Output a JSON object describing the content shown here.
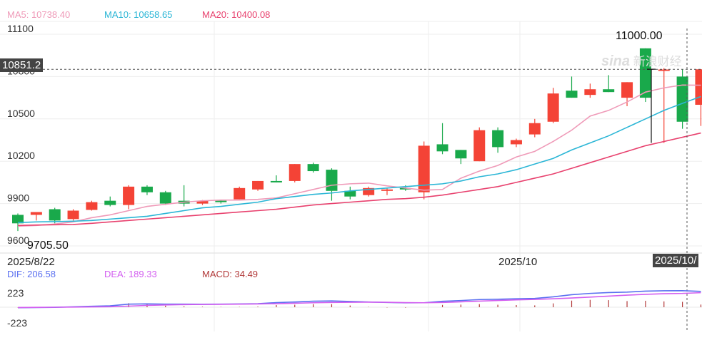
{
  "legend_top": {
    "ma5": {
      "label": "MA5: 10738.40",
      "color": "#ef9ab8"
    },
    "ma10": {
      "label": "MA10: 10658.65",
      "color": "#2bb6d6"
    },
    "ma20": {
      "label": "MA20: 10400.08",
      "color": "#e8416e"
    }
  },
  "legend_bottom": {
    "dif": {
      "label": "DIF: 206.58",
      "color": "#5a6ff0"
    },
    "dea": {
      "label": "DEA: 189.33",
      "color": "#d35ef0"
    },
    "macd": {
      "label": "MACD: 34.49",
      "color": "#b23a3a"
    }
  },
  "cursor": {
    "price_label": "10851.2",
    "date_label": "2025/10/"
  },
  "annotations": {
    "high": "11000.00",
    "low": "9705.50"
  },
  "watermark": {
    "brand": "sina",
    "text": "新浪财经"
  },
  "colors": {
    "up": "#f44336",
    "down": "#19a94b",
    "grid": "#eeeeee"
  },
  "chart_data": [
    {
      "type": "candlestick",
      "title": "",
      "y_ticks": [
        "11100",
        "10800",
        "10500",
        "10200",
        "9900",
        "9600"
      ],
      "ylim": [
        9600,
        11100
      ],
      "x_tick_labels": [
        "2025/8/22",
        "2025/10"
      ],
      "candles": [
        {
          "o": 9820,
          "h": 9830,
          "l": 9705.5,
          "c": 9760
        },
        {
          "o": 9820,
          "h": 9840,
          "l": 9780,
          "c": 9840
        },
        {
          "o": 9860,
          "h": 9870,
          "l": 9760,
          "c": 9780
        },
        {
          "o": 9790,
          "h": 9860,
          "l": 9780,
          "c": 9850
        },
        {
          "o": 9855,
          "h": 9920,
          "l": 9850,
          "c": 9910
        },
        {
          "o": 9920,
          "h": 9950,
          "l": 9880,
          "c": 9890
        },
        {
          "o": 9890,
          "h": 10030,
          "l": 9860,
          "c": 10020
        },
        {
          "o": 10020,
          "h": 10030,
          "l": 9960,
          "c": 9980
        },
        {
          "o": 9980,
          "h": 9990,
          "l": 9890,
          "c": 9900
        },
        {
          "o": 9920,
          "h": 10030,
          "l": 9880,
          "c": 9900
        },
        {
          "o": 9900,
          "h": 9925,
          "l": 9890,
          "c": 9920
        },
        {
          "o": 9920,
          "h": 9925,
          "l": 9900,
          "c": 9915
        },
        {
          "o": 9930,
          "h": 10020,
          "l": 9930,
          "c": 10010
        },
        {
          "o": 10000,
          "h": 10060,
          "l": 9990,
          "c": 10060
        },
        {
          "o": 10060,
          "h": 10100,
          "l": 10050,
          "c": 10050
        },
        {
          "o": 10060,
          "h": 10180,
          "l": 10050,
          "c": 10180
        },
        {
          "o": 10180,
          "h": 10190,
          "l": 10120,
          "c": 10130
        },
        {
          "o": 10140,
          "h": 10150,
          "l": 9920,
          "c": 9990
        },
        {
          "o": 9990,
          "h": 10020,
          "l": 9930,
          "c": 9950
        },
        {
          "o": 9960,
          "h": 10020,
          "l": 9950,
          "c": 10010
        },
        {
          "o": 9990,
          "h": 10010,
          "l": 9960,
          "c": 10000
        },
        {
          "o": 10010,
          "h": 10030,
          "l": 9990,
          "c": 10000
        },
        {
          "o": 9980,
          "h": 10340,
          "l": 9930,
          "c": 10310
        },
        {
          "o": 10320,
          "h": 10470,
          "l": 10250,
          "c": 10270
        },
        {
          "o": 10280,
          "h": 10280,
          "l": 10180,
          "c": 10220
        },
        {
          "o": 10200,
          "h": 10440,
          "l": 10200,
          "c": 10420
        },
        {
          "o": 10420,
          "h": 10440,
          "l": 10260,
          "c": 10300
        },
        {
          "o": 10320,
          "h": 10360,
          "l": 10300,
          "c": 10350
        },
        {
          "o": 10390,
          "h": 10500,
          "l": 10370,
          "c": 10470
        },
        {
          "o": 10480,
          "h": 10720,
          "l": 10470,
          "c": 10680
        },
        {
          "o": 10700,
          "h": 10800,
          "l": 10650,
          "c": 10650
        },
        {
          "o": 10670,
          "h": 10750,
          "l": 10650,
          "c": 10710
        },
        {
          "o": 10710,
          "h": 10810,
          "l": 10690,
          "c": 10690
        },
        {
          "o": 10650,
          "h": 10760,
          "l": 10590,
          "c": 10760
        },
        {
          "o": 11000,
          "h": 11000,
          "l": 10620,
          "c": 10650
        },
        {
          "o": 10850,
          "h": 10860,
          "l": 10330,
          "c": 10850
        },
        {
          "o": 10800,
          "h": 10850,
          "l": 10430,
          "c": 10480
        },
        {
          "o": 10600,
          "h": 10852,
          "l": 10450,
          "c": 10851.2
        }
      ],
      "series": [
        {
          "name": "MA5",
          "values": [
            9740,
            9745,
            9755,
            9770,
            9800,
            9820,
            9850,
            9880,
            9895,
            9910,
            9920,
            9925,
            9925,
            9930,
            9940,
            9970,
            10000,
            10030,
            10040,
            10045,
            10025,
            10010,
            9995,
            10000,
            10080,
            10130,
            10170,
            10230,
            10270,
            10340,
            10420,
            10520,
            10560,
            10620,
            10690,
            10720,
            10740,
            10738.4
          ]
        },
        {
          "name": "MA10",
          "values": [
            9765,
            9770,
            9772,
            9775,
            9780,
            9790,
            9800,
            9810,
            9830,
            9850,
            9870,
            9880,
            9895,
            9910,
            9935,
            9950,
            9965,
            9975,
            9990,
            10000,
            10010,
            10020,
            10030,
            10040,
            10060,
            10090,
            10110,
            10140,
            10180,
            10220,
            10280,
            10330,
            10380,
            10440,
            10500,
            10560,
            10610,
            10658.65
          ]
        },
        {
          "name": "MA20",
          "values": [
            9745,
            9748,
            9750,
            9752,
            9760,
            9770,
            9780,
            9790,
            9800,
            9810,
            9820,
            9830,
            9840,
            9850,
            9860,
            9875,
            9890,
            9900,
            9910,
            9920,
            9930,
            9935,
            9945,
            9960,
            9980,
            10000,
            10020,
            10050,
            10080,
            10110,
            10150,
            10190,
            10230,
            10270,
            10310,
            10340,
            10370,
            10400.08
          ]
        }
      ]
    },
    {
      "type": "macd",
      "title": "",
      "y_ticks": [
        "223",
        "-223"
      ],
      "ylim": [
        -223,
        223
      ],
      "series": [
        {
          "name": "DIF",
          "values": [
            -6,
            -4,
            -2,
            5,
            12,
            18,
            40,
            44,
            40,
            40,
            39,
            40,
            42,
            46,
            60,
            68,
            78,
            82,
            75,
            68,
            62,
            57,
            58,
            77,
            87,
            100,
            104,
            110,
            114,
            135,
            163,
            180,
            191,
            197,
            210,
            214,
            215,
            206.58
          ]
        },
        {
          "name": "DEA",
          "values": [
            -4,
            -2,
            0,
            2,
            4,
            6,
            14,
            24,
            30,
            34,
            36,
            38,
            40,
            42,
            46,
            52,
            58,
            62,
            64,
            66,
            64,
            60,
            58,
            62,
            70,
            80,
            88,
            96,
            102,
            110,
            120,
            132,
            145,
            157,
            168,
            176,
            180,
            189.33
          ]
        },
        {
          "name": "MACD",
          "type": "histogram",
          "values": [
            -3,
            -4,
            -4,
            6,
            16,
            24,
            52,
            40,
            20,
            12,
            6,
            4,
            4,
            8,
            28,
            32,
            40,
            40,
            22,
            4,
            -4,
            -6,
            0,
            30,
            34,
            40,
            32,
            28,
            24,
            50,
            86,
            96,
            92,
            80,
            84,
            76,
            70,
            34.49
          ]
        }
      ]
    }
  ]
}
